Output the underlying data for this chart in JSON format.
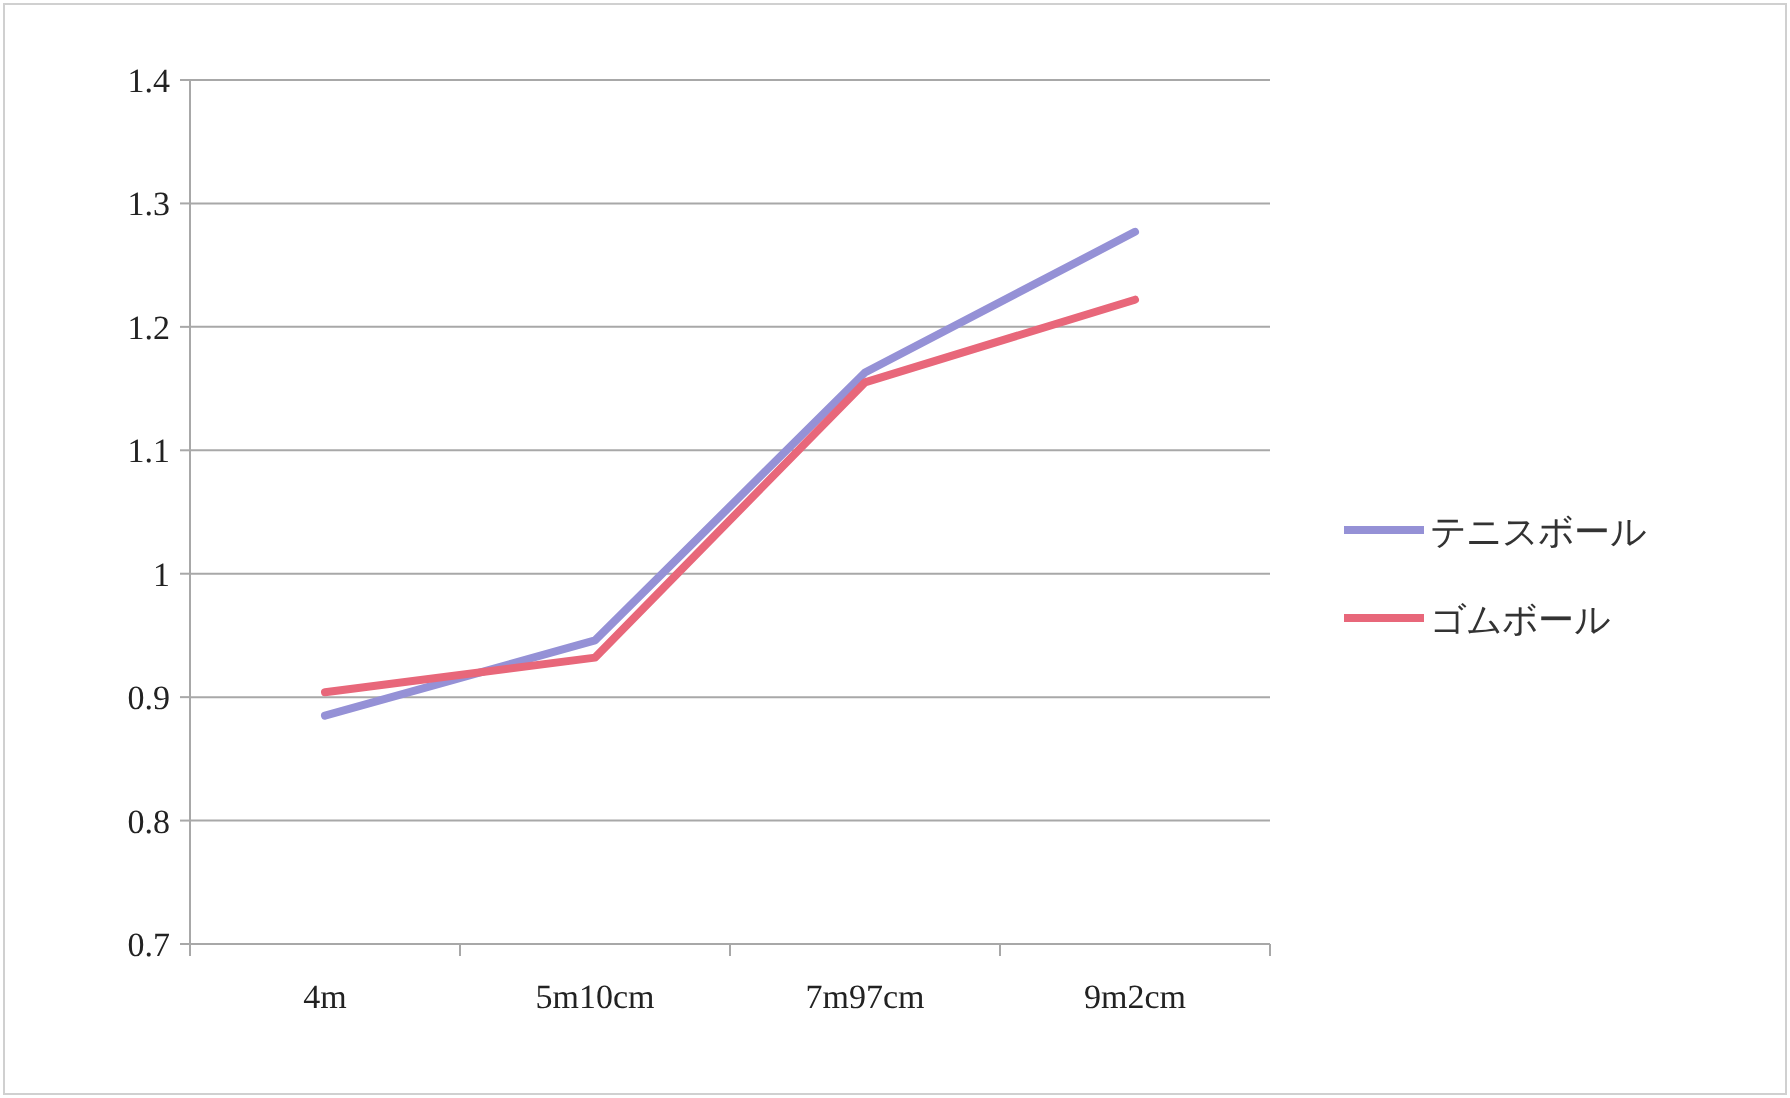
{
  "chart_data": {
    "type": "line",
    "categories": [
      "4m",
      "5m10cm",
      "7m97cm",
      "9m2cm"
    ],
    "series": [
      {
        "name": "テニスボール",
        "color": "#9591d6",
        "values": [
          0.885,
          0.946,
          1.163,
          1.277
        ]
      },
      {
        "name": "ゴムボール",
        "color": "#e8677a",
        "values": [
          0.904,
          0.932,
          1.155,
          1.222
        ]
      }
    ],
    "ylim": [
      0.7,
      1.4
    ],
    "yticks": [
      0.7,
      0.8,
      0.9,
      1,
      1.1,
      1.2,
      1.3,
      1.4
    ],
    "grid": "y",
    "legend": "right"
  }
}
